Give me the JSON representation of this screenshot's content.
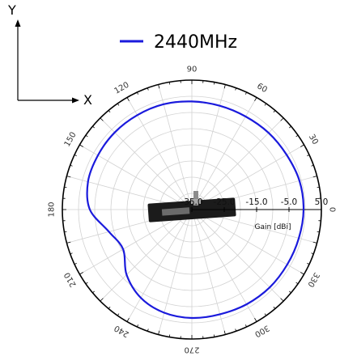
{
  "axes_indicator": {
    "x_label": "X",
    "y_label": "Y"
  },
  "chart_data": {
    "type": "line",
    "projection": "polar",
    "series": [
      {
        "name": "2440MHz",
        "color": "#1a1adc",
        "angles_deg": [
          0,
          15,
          30,
          45,
          60,
          75,
          90,
          105,
          120,
          135,
          150,
          165,
          180,
          195,
          210,
          225,
          240,
          255,
          270,
          285,
          300,
          315,
          330,
          345
        ],
        "gain_dbi": [
          -0.5,
          -0.6,
          -1.2,
          -1.5,
          -1.8,
          -1.8,
          -1.6,
          -1.3,
          -1.3,
          -1.3,
          -1.5,
          -1.8,
          -3.5,
          -8.5,
          -10.5,
          -6.5,
          -3.5,
          -2.0,
          -1.5,
          -1.5,
          -1.2,
          -1.0,
          -1.0,
          -0.8
        ]
      }
    ],
    "angle_ticks": [
      "0",
      "30",
      "60",
      "90",
      "120",
      "150",
      "180",
      "210",
      "240",
      "270",
      "300",
      "330"
    ],
    "radial_ticks": [
      "-35.0",
      "-25.0",
      "-15.0",
      "-5.0",
      "5.0"
    ],
    "radial_tick_values": [
      -35,
      -25,
      -15,
      -5,
      5
    ],
    "rlim": [
      -35,
      5
    ],
    "radial_label": "Gain [dBi]",
    "grid": true,
    "legend_position": "top"
  },
  "colors": {
    "series": "#1a1adc",
    "grid": "#d2d2d2",
    "outer_ring": "#000000",
    "antenna_board": "#1b1b1b"
  }
}
